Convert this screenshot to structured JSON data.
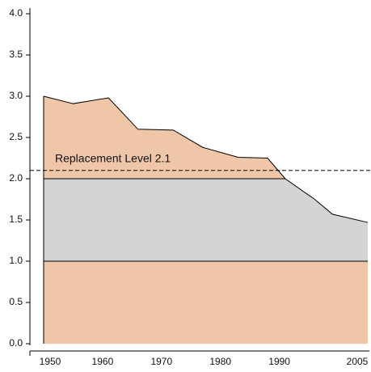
{
  "chart_data": {
    "type": "area",
    "x": [
      1950,
      1955,
      1961,
      1966,
      1972,
      1977,
      1983,
      1988,
      1991,
      1996,
      1999,
      2005
    ],
    "values": [
      3.0,
      2.91,
      2.98,
      2.6,
      2.59,
      2.38,
      2.26,
      2.25,
      2.0,
      1.75,
      1.57,
      1.47
    ],
    "color": "#efc7a8",
    "band": {
      "from": 1,
      "to": 2,
      "color": "#d4d4d4"
    },
    "reference_line": {
      "value": 2.1,
      "label": "Replacement Level 2.1"
    },
    "xlim": [
      1950,
      2005
    ],
    "xticks": [
      1950,
      1960,
      1970,
      1980,
      1990,
      2005
    ],
    "ylim": [
      0,
      4
    ],
    "yticks": [
      {
        "value": 0,
        "label": "0.0"
      },
      0.5,
      {
        "value": 1,
        "label": "1.0"
      },
      1.5,
      {
        "value": 2,
        "label": "2.0"
      },
      2.5,
      {
        "value": 3,
        "label": "3.0"
      },
      3.5,
      {
        "value": 4,
        "label": "4.0"
      }
    ]
  }
}
